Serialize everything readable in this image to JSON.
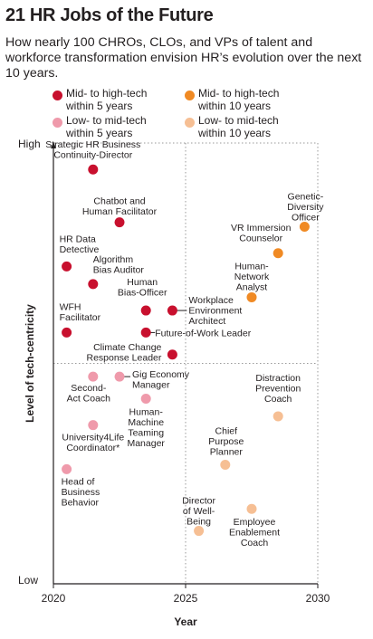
{
  "chart_data": {
    "type": "scatter",
    "title": "21 HR Jobs of the Future",
    "subtitle": "How nearly 100 CHROs, CLOs, and VPs of talent and workforce transformation envision HR’s evolution over the next 10 years.",
    "xlabel": "Year",
    "ylabel": "Level of tech-centricity",
    "xlim": [
      2020,
      2030
    ],
    "x_ticks": [
      "2020",
      "2025",
      "2030"
    ],
    "y_ticks": [
      "High",
      "Low"
    ],
    "ylim": [
      0,
      100
    ],
    "grid": "dotted reference lines at 2025 and at mid-level tech-centricity",
    "legend_position": "top",
    "series": [
      {
        "name": "Mid- to high-tech\nwithin 5 years",
        "color": "#c8102e"
      },
      {
        "name": "Low- to mid-tech\nwithin 5 years",
        "color": "#ef9aab"
      },
      {
        "name": "Mid- to high-tech\nwithin 10 years",
        "color": "#f08a24"
      },
      {
        "name": "Low- to mid-tech\nwithin 10 years",
        "color": "#f6bf94"
      }
    ],
    "points": [
      {
        "label": "Strategic HR Business\nContinuity-Director",
        "series": 0,
        "x": 2021.5,
        "y": 94
      },
      {
        "label": "Chatbot and\nHuman Facilitator",
        "series": 0,
        "x": 2022.5,
        "y": 82
      },
      {
        "label": "HR Data\nDetective",
        "series": 0,
        "x": 2020.5,
        "y": 72
      },
      {
        "label": "Algorithm\nBias Auditor",
        "series": 0,
        "x": 2021.5,
        "y": 68
      },
      {
        "label": "Human\nBias-Officer",
        "series": 0,
        "x": 2023.5,
        "y": 62
      },
      {
        "label": "Workplace\nEnvironment\nArchitect",
        "series": 0,
        "x": 2024.5,
        "y": 62
      },
      {
        "label": "WFH\nFacilitator",
        "series": 0,
        "x": 2020.5,
        "y": 57
      },
      {
        "label": "Future-of-Work Leader",
        "series": 0,
        "x": 2023.5,
        "y": 57
      },
      {
        "label": "Climate Change\nResponse Leader",
        "series": 0,
        "x": 2024.5,
        "y": 52
      },
      {
        "label": "Second-\nAct Coach",
        "series": 1,
        "x": 2021.5,
        "y": 47
      },
      {
        "label": "Gig Economy\nManager",
        "series": 1,
        "x": 2022.5,
        "y": 47
      },
      {
        "label": "Human-\nMachine\nTeaming\nManager",
        "series": 1,
        "x": 2023.5,
        "y": 42
      },
      {
        "label": "University4Life\nCoordinator*",
        "series": 1,
        "x": 2021.5,
        "y": 36
      },
      {
        "label": "Head of\nBusiness\nBehavior",
        "series": 1,
        "x": 2020.5,
        "y": 26
      },
      {
        "label": "Genetic-\nDiversity\nOfficer",
        "series": 2,
        "x": 2029.5,
        "y": 81
      },
      {
        "label": "VR Immersion\nCounselor",
        "series": 2,
        "x": 2028.5,
        "y": 75
      },
      {
        "label": "Human-\nNetwork\nAnalyst",
        "series": 2,
        "x": 2027.5,
        "y": 65
      },
      {
        "label": "Distraction\nPrevention\nCoach",
        "series": 3,
        "x": 2028.5,
        "y": 38
      },
      {
        "label": "Chief\nPurpose\nPlanner",
        "series": 3,
        "x": 2026.5,
        "y": 27
      },
      {
        "label": "Employee\nEnablement\nCoach",
        "series": 3,
        "x": 2027.5,
        "y": 17
      },
      {
        "label": "Director\nof Well-\nBeing",
        "series": 3,
        "x": 2025.5,
        "y": 12
      }
    ]
  }
}
